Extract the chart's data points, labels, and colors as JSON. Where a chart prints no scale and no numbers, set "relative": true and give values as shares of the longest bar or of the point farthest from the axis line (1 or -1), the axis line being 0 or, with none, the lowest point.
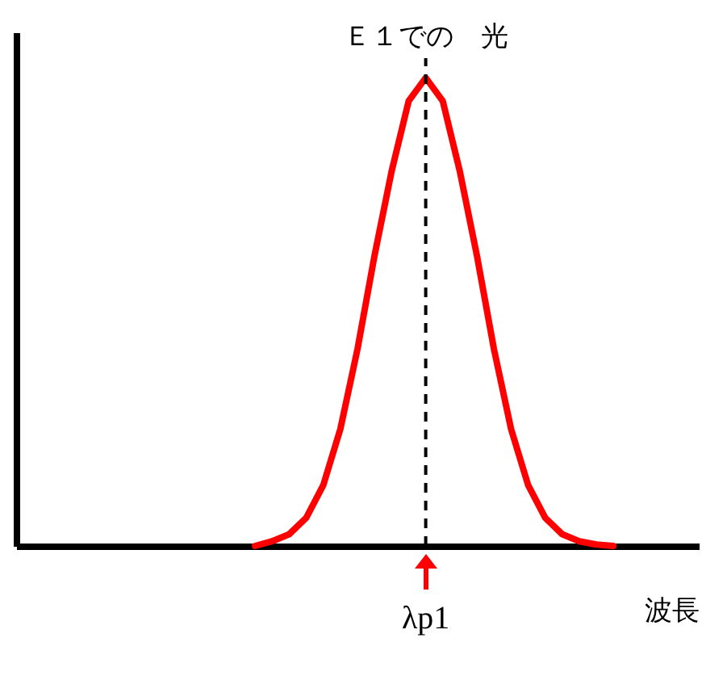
{
  "chart_data": {
    "type": "line",
    "title": "Ｅ１での　光",
    "xlabel": "波長",
    "relative": true,
    "grid": false,
    "marker": "none",
    "line_style": "solid",
    "categories": [
      null,
      null,
      null,
      null,
      null,
      null,
      null,
      null,
      null,
      null,
      null,
      null,
      null,
      null,
      null,
      null,
      null,
      null,
      null,
      null,
      null,
      null,
      null,
      null,
      null,
      null,
      null,
      null,
      null,
      null,
      null,
      null,
      null,
      null,
      null,
      null,
      null,
      null,
      null,
      null,
      null
    ],
    "series": [
      {
        "color": "#ff0000",
        "values": [
          null,
          null,
          null,
          null,
          null,
          null,
          null,
          null,
          null,
          null,
          null,
          null,
          null,
          null,
          0,
          0.01,
          0.025,
          0.06,
          0.13,
          0.25,
          0.42,
          0.62,
          0.8,
          0.95,
          1,
          0.95,
          0.8,
          0.62,
          0.42,
          0.25,
          0.13,
          0.06,
          0.025,
          0.01,
          0.003,
          0,
          null,
          null,
          null,
          null,
          null
        ]
      }
    ],
    "ref_lines": [
      {
        "axis": "x",
        "label": "λp1",
        "line_style": "dashed",
        "color": "#000000"
      }
    ]
  }
}
